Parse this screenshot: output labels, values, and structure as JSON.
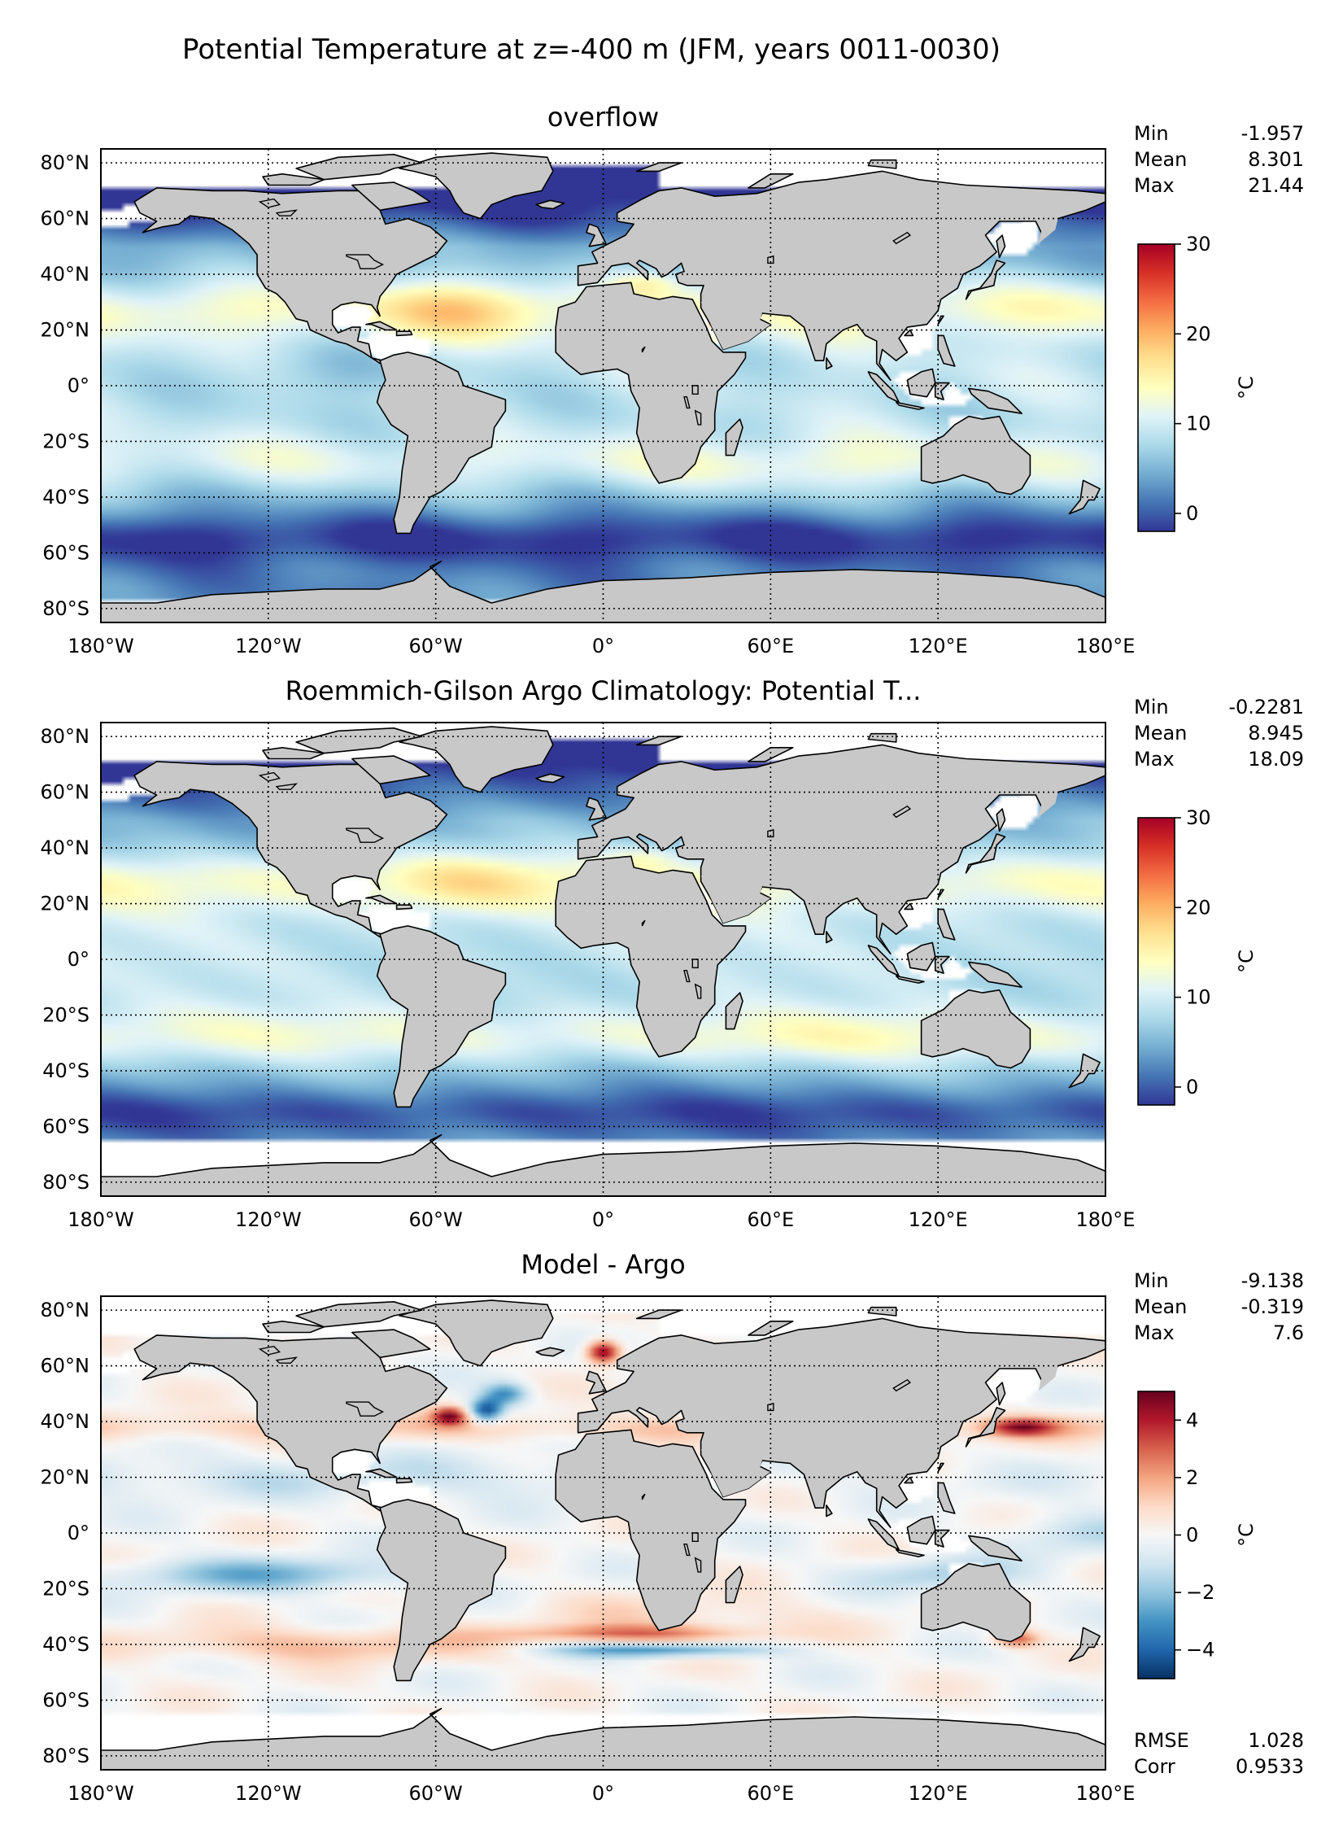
{
  "figure_title": "Potential Temperature at z=-400 m (JFM, years 0011-0030)",
  "colors": {
    "land": "#c8c8c8",
    "missing": "#ffffff",
    "coast": "#000000",
    "temp_cmap": [
      "#313695",
      "#4575b4",
      "#74add1",
      "#abd9e9",
      "#e0f3f8",
      "#ffffbf",
      "#fee090",
      "#fdae61",
      "#f46d43",
      "#d73027",
      "#a50026"
    ],
    "diff_cmap": [
      "#053061",
      "#2166ac",
      "#4393c3",
      "#92c5de",
      "#d1e5f0",
      "#f7f7f7",
      "#fddbc7",
      "#f4a582",
      "#d6604d",
      "#b2182b",
      "#67001f"
    ]
  },
  "chart_data": [
    {
      "type": "heatmap",
      "title": "overflow",
      "xticks": [
        "180°W",
        "120°W",
        "60°W",
        "0°",
        "60°E",
        "120°E",
        "180°E"
      ],
      "yticks": [
        "80°N",
        "60°N",
        "40°N",
        "20°N",
        "0°",
        "20°S",
        "40°S",
        "60°S",
        "80°S"
      ],
      "xlim": [
        -180,
        180
      ],
      "ylim": [
        -85,
        85
      ],
      "grid": true,
      "stats": [
        {
          "label": "Min",
          "value": "-1.957"
        },
        {
          "label": "Mean",
          "value": "8.301"
        },
        {
          "label": "Max",
          "value": "21.44"
        }
      ],
      "colorbar": {
        "label": "°C",
        "min": -2,
        "max": 30,
        "ticks": [
          0,
          10,
          20,
          30
        ],
        "cmap": "temp"
      },
      "field": "model"
    },
    {
      "type": "heatmap",
      "title": "Roemmich-Gilson Argo Climatology: Potential T...",
      "xticks": [
        "180°W",
        "120°W",
        "60°W",
        "0°",
        "60°E",
        "120°E",
        "180°E"
      ],
      "yticks": [
        "80°N",
        "60°N",
        "40°N",
        "20°N",
        "0°",
        "20°S",
        "40°S",
        "60°S",
        "80°S"
      ],
      "xlim": [
        -180,
        180
      ],
      "ylim": [
        -85,
        85
      ],
      "grid": true,
      "stats": [
        {
          "label": "Min",
          "value": "-0.2281"
        },
        {
          "label": "Mean",
          "value": "8.945"
        },
        {
          "label": "Max",
          "value": "18.09"
        }
      ],
      "colorbar": {
        "label": "°C",
        "min": -2,
        "max": 30,
        "ticks": [
          0,
          10,
          20,
          30
        ],
        "cmap": "temp"
      },
      "field": "obs"
    },
    {
      "type": "heatmap",
      "title": "Model - Argo",
      "xticks": [
        "180°W",
        "120°W",
        "60°W",
        "0°",
        "60°E",
        "120°E",
        "180°E"
      ],
      "yticks": [
        "80°N",
        "60°N",
        "40°N",
        "20°N",
        "0°",
        "20°S",
        "40°S",
        "60°S",
        "80°S"
      ],
      "xlim": [
        -180,
        180
      ],
      "ylim": [
        -85,
        85
      ],
      "grid": true,
      "stats": [
        {
          "label": "Min",
          "value": "-9.138"
        },
        {
          "label": "Mean",
          "value": "-0.319"
        },
        {
          "label": "Max",
          "value": "7.6"
        }
      ],
      "colorbar": {
        "label": "°C",
        "min": -5,
        "max": 5,
        "ticks": [
          -4,
          -2,
          0,
          2,
          4
        ],
        "tick_labels": [
          "−4",
          "−2",
          "0",
          "2",
          "4"
        ],
        "cmap": "diff"
      },
      "field": "diff",
      "extra_stats": [
        {
          "label": "RMSE",
          "value": "1.028"
        },
        {
          "label": "Corr",
          "value": "0.9533"
        }
      ]
    }
  ]
}
